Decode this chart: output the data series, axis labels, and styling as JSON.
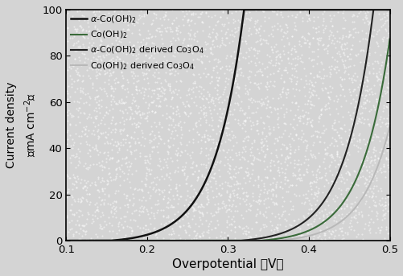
{
  "xlim": [
    0.1,
    0.5
  ],
  "ylim": [
    0,
    100
  ],
  "xticks": [
    0.1,
    0.2,
    0.3,
    0.4,
    0.5
  ],
  "yticks": [
    0,
    20,
    40,
    60,
    80,
    100
  ],
  "bg_color": "#d8d8d8",
  "curves": [
    {
      "label": "$\\alpha$-Co(OH)$_2$",
      "color": "#111111",
      "linewidth": 1.8,
      "onset": 0.155,
      "k": 28.0
    },
    {
      "label": "Co(OH)$_2$",
      "color": "#3a6b3a",
      "linewidth": 1.5,
      "onset": 0.34,
      "k": 28.0
    },
    {
      "label": "$\\alpha$-Co(OH)$_2$ derived Co$_3$O$_4$",
      "color": "#222222",
      "linewidth": 1.5,
      "onset": 0.315,
      "k": 28.0
    },
    {
      "label": "Co(OH)$_2$ derived Co$_3$O$_4$",
      "color": "#b8b8b8",
      "linewidth": 1.4,
      "onset": 0.36,
      "k": 28.0
    }
  ],
  "xlabel": "Overpotential （V）",
  "ylabel_line1": "Current density",
  "ylabel_line2": "（mA cm$^{-2}$）",
  "legend_fontsize": 8.0,
  "tick_labelsize": 9.5
}
